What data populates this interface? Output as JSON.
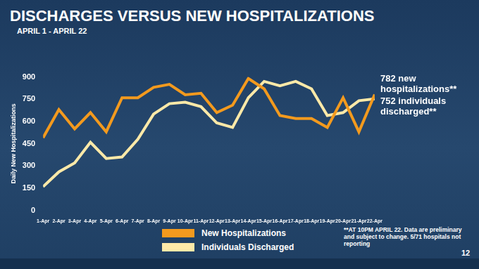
{
  "chart_data": {
    "type": "line",
    "title": "DISCHARGES VERSUS NEW HOSPITALIZATIONS",
    "subtitle": "APRIL 1 - APRIL 22",
    "y_label": "Daily New Hospitalizations",
    "categories": [
      "1-Apr",
      "2-Apr",
      "3-Apr",
      "4-Apr",
      "5-Apr",
      "6-Apr",
      "7-Apr",
      "8-Apr",
      "9-Apr",
      "10-Apr",
      "11-Apr",
      "12-Apr",
      "13-Apr",
      "14-Apr",
      "15-Apr",
      "16-Apr",
      "17-Apr",
      "18-Apr",
      "19-Apr",
      "20-Apr",
      "21-Apr",
      "22-Apr"
    ],
    "series": [
      {
        "name": "New Hospitalizations",
        "color": "#f39a1e",
        "values": [
          490,
          680,
          550,
          660,
          530,
          760,
          760,
          830,
          850,
          780,
          790,
          660,
          710,
          890,
          820,
          640,
          620,
          620,
          560,
          760,
          530,
          782
        ]
      },
      {
        "name": "Individuals Discharged",
        "color": "#fde9a8",
        "values": [
          160,
          260,
          320,
          460,
          350,
          360,
          480,
          650,
          720,
          730,
          700,
          590,
          560,
          760,
          870,
          840,
          870,
          820,
          640,
          660,
          740,
          752
        ]
      }
    ],
    "ylim": [
      0,
      900
    ],
    "yticks": [
      0,
      150,
      300,
      450,
      600,
      750,
      900
    ],
    "grid": false,
    "annotations": [
      "782 new hospitalizations**",
      "752 individuals discharged**"
    ],
    "note": "**AT 10PM APRIL 22. Data are preliminary and subject to change. 5/71 hospitals not reporting",
    "page_number": "12"
  }
}
